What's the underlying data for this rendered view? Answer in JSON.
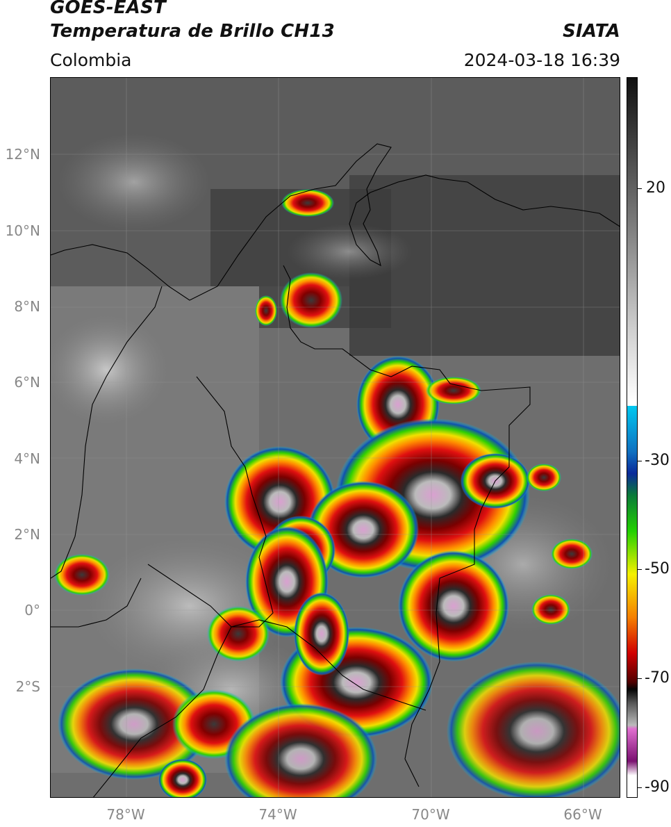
{
  "header": {
    "satellite": "GOES-EAST",
    "product": "Temperatura de Brillo CH13",
    "org": "SIATA",
    "region": "Colombia",
    "datetime": "2024-03-18 16:39"
  },
  "map": {
    "latitudes": [
      "12°N",
      "10°N",
      "8°N",
      "6°N",
      "4°N",
      "2°N",
      "0°",
      "2°S"
    ],
    "longitudes": [
      "78°W",
      "74°W",
      "70°W",
      "66°W"
    ]
  },
  "colorbar": {
    "ticks": [
      "20",
      "-30",
      "-50",
      "-70",
      "-90"
    ],
    "colors": {
      "warm_top": "#111111",
      "white": "#ffffff",
      "cyan": "#00c8f0",
      "blue": "#0a2a9a",
      "green": "#22d000",
      "yellow": "#f5f000",
      "orange": "#f58000",
      "red": "#d00000",
      "darkred": "#500000",
      "black": "#050505",
      "pink": "#e070d0",
      "purple": "#7a1070"
    }
  }
}
